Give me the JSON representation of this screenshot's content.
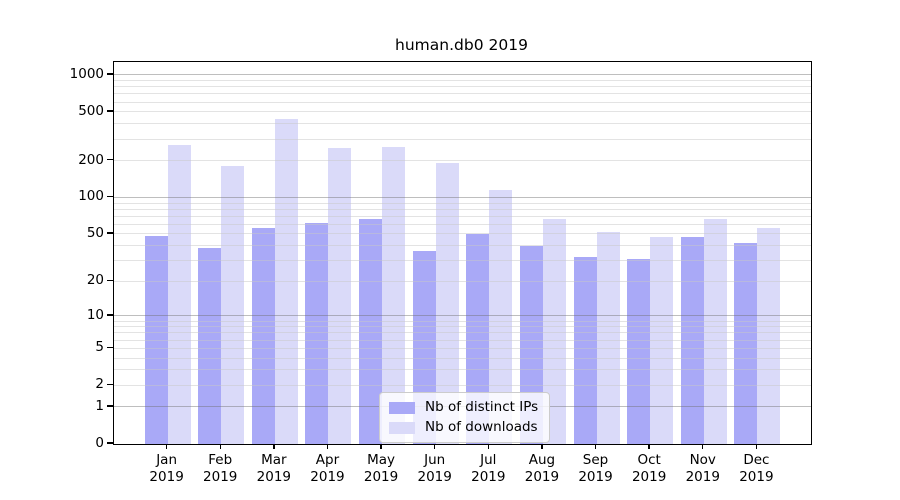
{
  "chart_data": {
    "type": "bar",
    "title": "human.db0 2019",
    "categories": [
      "Jan",
      "Feb",
      "Mar",
      "Apr",
      "May",
      "Jun",
      "Jul",
      "Aug",
      "Sep",
      "Oct",
      "Nov",
      "Dec"
    ],
    "year_label": "2019",
    "series": [
      {
        "name": "Nb of distinct IPs",
        "slug": "distinct-ips",
        "color": "#a9a9f7",
        "values": [
          48,
          38,
          56,
          62,
          67,
          36,
          50,
          40,
          32,
          31,
          47,
          42
        ]
      },
      {
        "name": "Nb of downloads",
        "slug": "downloads",
        "color": "#dadaf9",
        "values": [
          270,
          182,
          440,
          252,
          258,
          192,
          115,
          67,
          52,
          47,
          66,
          56
        ]
      }
    ],
    "yscale": "log1p",
    "ylim": [
      0,
      1275
    ],
    "ytick_labels": [
      0,
      1,
      2,
      5,
      10,
      20,
      50,
      100,
      200,
      500,
      1000
    ],
    "grid": {
      "major": [
        1,
        10,
        100,
        1000
      ],
      "minor": [
        2,
        3,
        4,
        5,
        6,
        7,
        8,
        9,
        20,
        30,
        40,
        50,
        60,
        70,
        80,
        90,
        200,
        300,
        400,
        500,
        600,
        700,
        800,
        900
      ]
    },
    "legend_position": "lower center",
    "xlabel": "",
    "ylabel": ""
  }
}
